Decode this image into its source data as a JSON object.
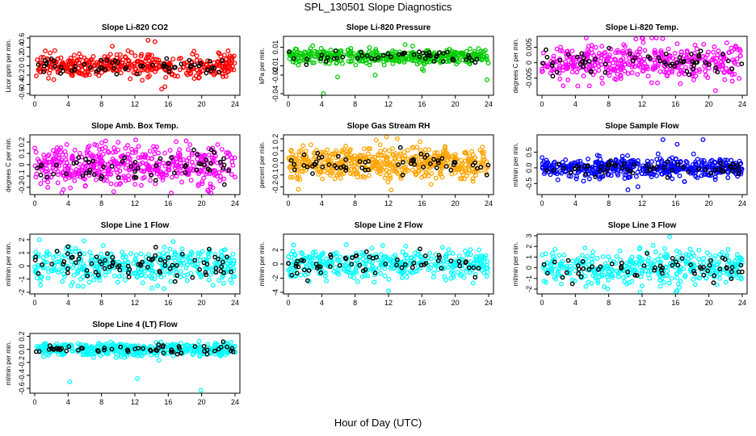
{
  "figure": {
    "title": "SPL_130501  Slope Diagnostics",
    "xlabel": "Hour of Day (UTC)"
  },
  "chart_data": [
    {
      "type": "scatter",
      "title": "Slope Li-820 CO2",
      "ylabel": "Licor ppm per min.",
      "color": "#ff0000",
      "xlim": [
        0,
        24
      ],
      "ylim": [
        -0.6,
        0.6
      ],
      "xticks": [
        0,
        4,
        8,
        12,
        16,
        20,
        24
      ],
      "yticks": [
        -0.6,
        -0.4,
        -0.2,
        0,
        0.2,
        0.4,
        0.6
      ],
      "ytick_labels": [
        "-0.6",
        "-0.4",
        "-0.2",
        "0",
        "0.2",
        "0.4",
        "0.6"
      ],
      "spread": 0.12,
      "n": 420,
      "nblack": 60,
      "outliers": [
        [
          13.6,
          0.55
        ],
        [
          14.4,
          0.52
        ],
        [
          15.6,
          -0.45
        ],
        [
          15.2,
          -0.5
        ],
        [
          9.3,
          0.42
        ]
      ]
    },
    {
      "type": "scatter",
      "title": "Slope Li-820 Pressure",
      "ylabel": "kPa per min.",
      "color": "#00cc00",
      "xlim": [
        0,
        24
      ],
      "ylim": [
        -0.04,
        0.02
      ],
      "xticks": [
        0,
        4,
        8,
        12,
        16,
        20,
        24
      ],
      "yticks": [
        -0.04,
        -0.02,
        -0.01,
        0.01
      ],
      "ytick_labels": [
        "-0.04",
        "-0.02",
        "-0.01",
        "0.01"
      ],
      "spread": 0.004,
      "center": 0.0,
      "n": 420,
      "nblack": 50,
      "outliers": [
        [
          4.2,
          -0.04
        ],
        [
          10.4,
          -0.02
        ],
        [
          5.9,
          -0.022
        ],
        [
          23.8,
          -0.025
        ],
        [
          16.2,
          -0.015
        ]
      ]
    },
    {
      "type": "scatter",
      "title": "Slope Li-820 Temp.",
      "ylabel": "degrees C per min.",
      "color": "#ff00ff",
      "xlim": [
        0,
        24
      ],
      "ylim": [
        -0.01,
        0.008
      ],
      "xticks": [
        0,
        4,
        8,
        12,
        16,
        20,
        24
      ],
      "yticks": [
        -0.005,
        0,
        0.005
      ],
      "ytick_labels": [
        "-0.005",
        "0",
        "0.005"
      ],
      "spread": 0.003,
      "n": 420,
      "nblack": 60,
      "outliers": [
        [
          5.3,
          0.008
        ],
        [
          13.7,
          0.008
        ],
        [
          20.8,
          -0.009
        ]
      ]
    },
    {
      "type": "scatter",
      "title": "Slope Amb. Box Temp.",
      "ylabel": "degrees C per min.",
      "color": "#ff00ff",
      "xlim": [
        0,
        24
      ],
      "ylim": [
        -0.25,
        0.25
      ],
      "xticks": [
        0,
        4,
        8,
        12,
        16,
        20,
        24
      ],
      "yticks": [
        -0.2,
        -0.1,
        0,
        0.1,
        0.2
      ],
      "ytick_labels": [
        "-0.2",
        "-0.1",
        "0",
        "0.1",
        "0.2"
      ],
      "spread": 0.09,
      "n": 480,
      "nblack": 60,
      "outliers": []
    },
    {
      "type": "scatter",
      "title": "Slope Gas Stream RH",
      "ylabel": "percent per min.",
      "color": "#ffa500",
      "xlim": [
        0,
        24
      ],
      "ylim": [
        -0.25,
        0.22
      ],
      "xticks": [
        0,
        4,
        8,
        12,
        16,
        20,
        24
      ],
      "yticks": [
        -0.2,
        -0.1,
        0,
        0.1,
        0.2
      ],
      "ytick_labels": [
        "-0.2",
        "-0.1",
        "0.0",
        "0.1",
        "0.2"
      ],
      "spread": 0.07,
      "n": 520,
      "nblack": 60,
      "outliers": [
        [
          1.2,
          -0.22
        ]
      ]
    },
    {
      "type": "scatter",
      "title": "Slope Sample Flow",
      "ylabel": "ml/min per min.",
      "color": "#0000ff",
      "xlim": [
        0,
        24
      ],
      "ylim": [
        -0.8,
        1.0
      ],
      "xticks": [
        0,
        4,
        8,
        12,
        16,
        20,
        24
      ],
      "yticks": [
        -0.5,
        0,
        0.5
      ],
      "ytick_labels": [
        "-0.5",
        "0.0",
        "0.5"
      ],
      "spread": 0.15,
      "n": 480,
      "nblack": 60,
      "outliers": [
        [
          10.3,
          -0.7
        ],
        [
          11.5,
          -0.6
        ],
        [
          14.5,
          0.9
        ],
        [
          19.3,
          0.9
        ],
        [
          16.2,
          0.75
        ]
      ]
    },
    {
      "type": "scatter",
      "title": "Slope Line 1 Flow",
      "ylabel": "ml/min per min.",
      "color": "#00ffff",
      "xlim": [
        0,
        24
      ],
      "ylim": [
        -2,
        2.3
      ],
      "xticks": [
        0,
        4,
        8,
        12,
        16,
        20,
        24
      ],
      "yticks": [
        -2,
        -1,
        0,
        1,
        2
      ],
      "ytick_labels": [
        "-2",
        "-1",
        "0",
        "1",
        "2"
      ],
      "spread": 0.7,
      "n": 380,
      "nblack": 80,
      "outliers": []
    },
    {
      "type": "scatter",
      "title": "Slope Line 2 Flow",
      "ylabel": "ml/min per min.",
      "color": "#00ffff",
      "xlim": [
        0,
        24
      ],
      "ylim": [
        -4,
        4
      ],
      "xticks": [
        0,
        4,
        8,
        12,
        16,
        20,
        24
      ],
      "yticks": [
        -4,
        -2,
        0,
        2
      ],
      "ytick_labels": [
        "-4",
        "-2",
        "0",
        "2"
      ],
      "spread": 1.0,
      "n": 380,
      "nblack": 60,
      "outliers": [
        [
          12,
          -3.8
        ]
      ]
    },
    {
      "type": "scatter",
      "title": "Slope Line 3 Flow",
      "ylabel": "ml/min per min.",
      "color": "#00ffff",
      "xlim": [
        0,
        24
      ],
      "ylim": [
        -2.3,
        3
      ],
      "xticks": [
        0,
        4,
        8,
        12,
        16,
        20,
        24
      ],
      "yticks": [
        -2,
        -1,
        0,
        1,
        2,
        3
      ],
      "ytick_labels": [
        "-2",
        "-1",
        "0",
        "1",
        "2",
        "3"
      ],
      "spread": 0.8,
      "n": 380,
      "nblack": 60,
      "outliers": [
        [
          15.3,
          2.9
        ]
      ]
    },
    {
      "type": "scatter",
      "title": "Slope Line 4 (LT) Flow",
      "ylabel": "ml/min per min.",
      "color": "#00ffff",
      "xlim": [
        0,
        24
      ],
      "ylim": [
        -0.65,
        0.22
      ],
      "xticks": [
        0,
        4,
        8,
        12,
        16,
        20,
        24
      ],
      "yticks": [
        -0.6,
        -0.4,
        -0.2,
        0,
        0.2
      ],
      "ytick_labels": [
        "-0.6",
        "-0.4",
        "-0.2",
        "0.0",
        "0.2"
      ],
      "spread": 0.05,
      "n": 420,
      "nblack": 60,
      "outliers": [
        [
          4.2,
          -0.5
        ],
        [
          12.3,
          -0.45
        ],
        [
          19.9,
          -0.63
        ]
      ]
    }
  ]
}
